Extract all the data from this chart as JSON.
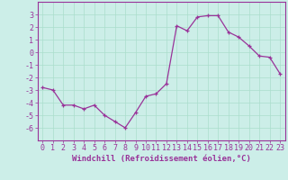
{
  "x": [
    0,
    1,
    2,
    3,
    4,
    5,
    6,
    7,
    8,
    9,
    10,
    11,
    12,
    13,
    14,
    15,
    16,
    17,
    18,
    19,
    20,
    21,
    22,
    23
  ],
  "y": [
    -2.8,
    -3.0,
    -4.2,
    -4.2,
    -4.5,
    -4.2,
    -5.0,
    -5.5,
    -6.0,
    -4.8,
    -3.5,
    -3.3,
    -2.5,
    2.1,
    1.7,
    2.8,
    2.9,
    2.9,
    1.6,
    1.2,
    0.5,
    -0.3,
    -0.4,
    -1.7
  ],
  "line_color": "#993399",
  "marker_color": "#993399",
  "bg_color": "#cceee8",
  "grid_color": "#aaddcc",
  "axis_color": "#993399",
  "xlabel": "Windchill (Refroidissement éolien,°C)",
  "ylim": [
    -7,
    4
  ],
  "xlim": [
    -0.5,
    23.5
  ],
  "yticks": [
    -6,
    -5,
    -4,
    -3,
    -2,
    -1,
    0,
    1,
    2,
    3
  ],
  "xticks": [
    0,
    1,
    2,
    3,
    4,
    5,
    6,
    7,
    8,
    9,
    10,
    11,
    12,
    13,
    14,
    15,
    16,
    17,
    18,
    19,
    20,
    21,
    22,
    23
  ],
  "xlabel_fontsize": 6.5,
  "tick_fontsize": 6.0
}
